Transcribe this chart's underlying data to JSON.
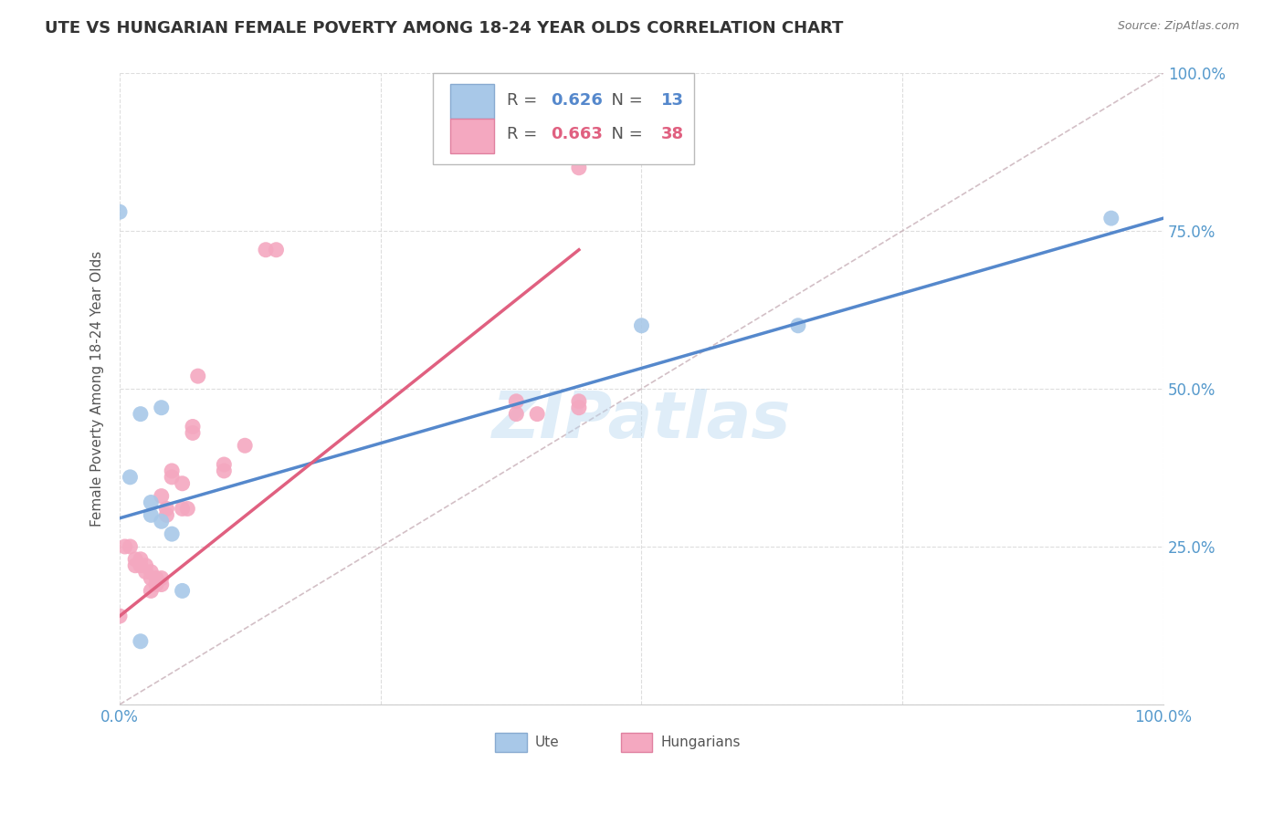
{
  "title": "UTE VS HUNGARIAN FEMALE POVERTY AMONG 18-24 YEAR OLDS CORRELATION CHART",
  "source": "Source: ZipAtlas.com",
  "ylabel": "Female Poverty Among 18-24 Year Olds",
  "xlim": [
    0,
    1
  ],
  "ylim": [
    0,
    1
  ],
  "xticks": [
    0,
    0.25,
    0.5,
    0.75,
    1.0
  ],
  "yticks": [
    0,
    0.25,
    0.5,
    0.75,
    1.0
  ],
  "background_color": "#ffffff",
  "watermark_text": "ZIPatlas",
  "ute_R": 0.626,
  "ute_N": 13,
  "hung_R": 0.663,
  "hung_N": 38,
  "ute_color": "#a8c8e8",
  "hung_color": "#f4a8c0",
  "ute_line_color": "#5588cc",
  "hung_line_color": "#e06080",
  "ref_line_color": "#c8b0b8",
  "ute_scatter_x": [
    0.0,
    0.01,
    0.02,
    0.03,
    0.04,
    0.05,
    0.06,
    0.04,
    0.03,
    0.5,
    0.65,
    0.95,
    0.02
  ],
  "ute_scatter_y": [
    0.78,
    0.36,
    0.46,
    0.3,
    0.29,
    0.27,
    0.18,
    0.47,
    0.32,
    0.6,
    0.6,
    0.77,
    0.1
  ],
  "hung_scatter_x": [
    0.0,
    0.005,
    0.01,
    0.015,
    0.015,
    0.02,
    0.02,
    0.025,
    0.025,
    0.03,
    0.03,
    0.03,
    0.035,
    0.035,
    0.04,
    0.04,
    0.04,
    0.045,
    0.045,
    0.05,
    0.05,
    0.06,
    0.06,
    0.065,
    0.07,
    0.07,
    0.075,
    0.1,
    0.1,
    0.12,
    0.14,
    0.15,
    0.38,
    0.38,
    0.44,
    0.44,
    0.44,
    0.4
  ],
  "hung_scatter_y": [
    0.14,
    0.25,
    0.25,
    0.22,
    0.23,
    0.22,
    0.23,
    0.21,
    0.22,
    0.18,
    0.2,
    0.21,
    0.19,
    0.2,
    0.19,
    0.2,
    0.33,
    0.3,
    0.31,
    0.36,
    0.37,
    0.35,
    0.31,
    0.31,
    0.43,
    0.44,
    0.52,
    0.37,
    0.38,
    0.41,
    0.72,
    0.72,
    0.48,
    0.46,
    0.48,
    0.47,
    0.85,
    0.46
  ],
  "ute_line_x0": 0.0,
  "ute_line_y0": 0.295,
  "ute_line_x1": 1.0,
  "ute_line_y1": 0.77,
  "hung_line_x0": 0.0,
  "hung_line_y0": 0.14,
  "hung_line_x1": 0.44,
  "hung_line_y1": 0.72,
  "legend_label_ute": "Ute",
  "legend_label_hung": "Hungarians"
}
